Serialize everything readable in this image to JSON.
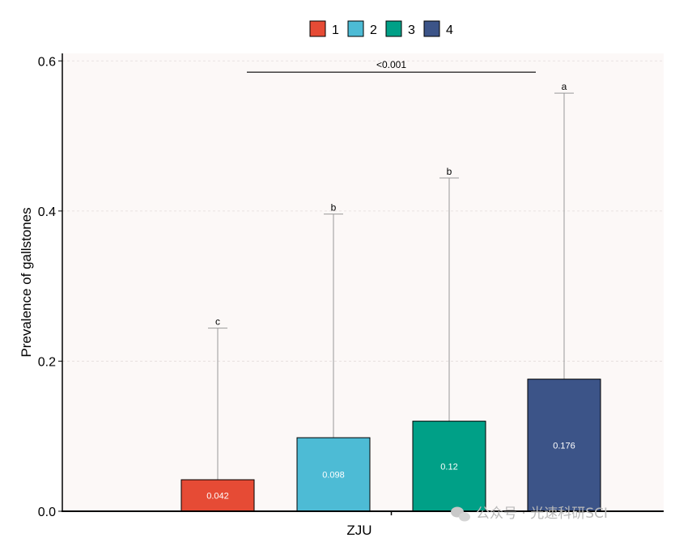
{
  "chart_data": {
    "type": "bar",
    "categories": [
      "ZJU"
    ],
    "xlabel": "ZJU",
    "ylabel": "Prevalence of gallstones",
    "ylim": [
      0,
      0.61
    ],
    "yticks": [
      "0.0",
      "0.2",
      "0.4",
      "0.6"
    ],
    "grid": true,
    "legend_position": "top",
    "series": [
      {
        "name": "1",
        "value": 0.042,
        "label": "0.042",
        "error_upper": 0.244,
        "letter": "c",
        "color": "#E64B35"
      },
      {
        "name": "2",
        "value": 0.098,
        "label": "0.098",
        "error_upper": 0.396,
        "letter": "b",
        "color": "#4DBBD5"
      },
      {
        "name": "3",
        "value": 0.12,
        "label": "0.12",
        "error_upper": 0.444,
        "letter": "b",
        "color": "#00A087"
      },
      {
        "name": "4",
        "value": 0.176,
        "label": "0.176",
        "error_upper": 0.557,
        "letter": "a",
        "color": "#3C5488"
      }
    ],
    "significance": {
      "label": "<0.001",
      "y": 0.585,
      "from_series": "2",
      "to_series": "4"
    },
    "panel_background": "#FCF8F7"
  },
  "watermark": "公众号 · 光速科研SCI"
}
